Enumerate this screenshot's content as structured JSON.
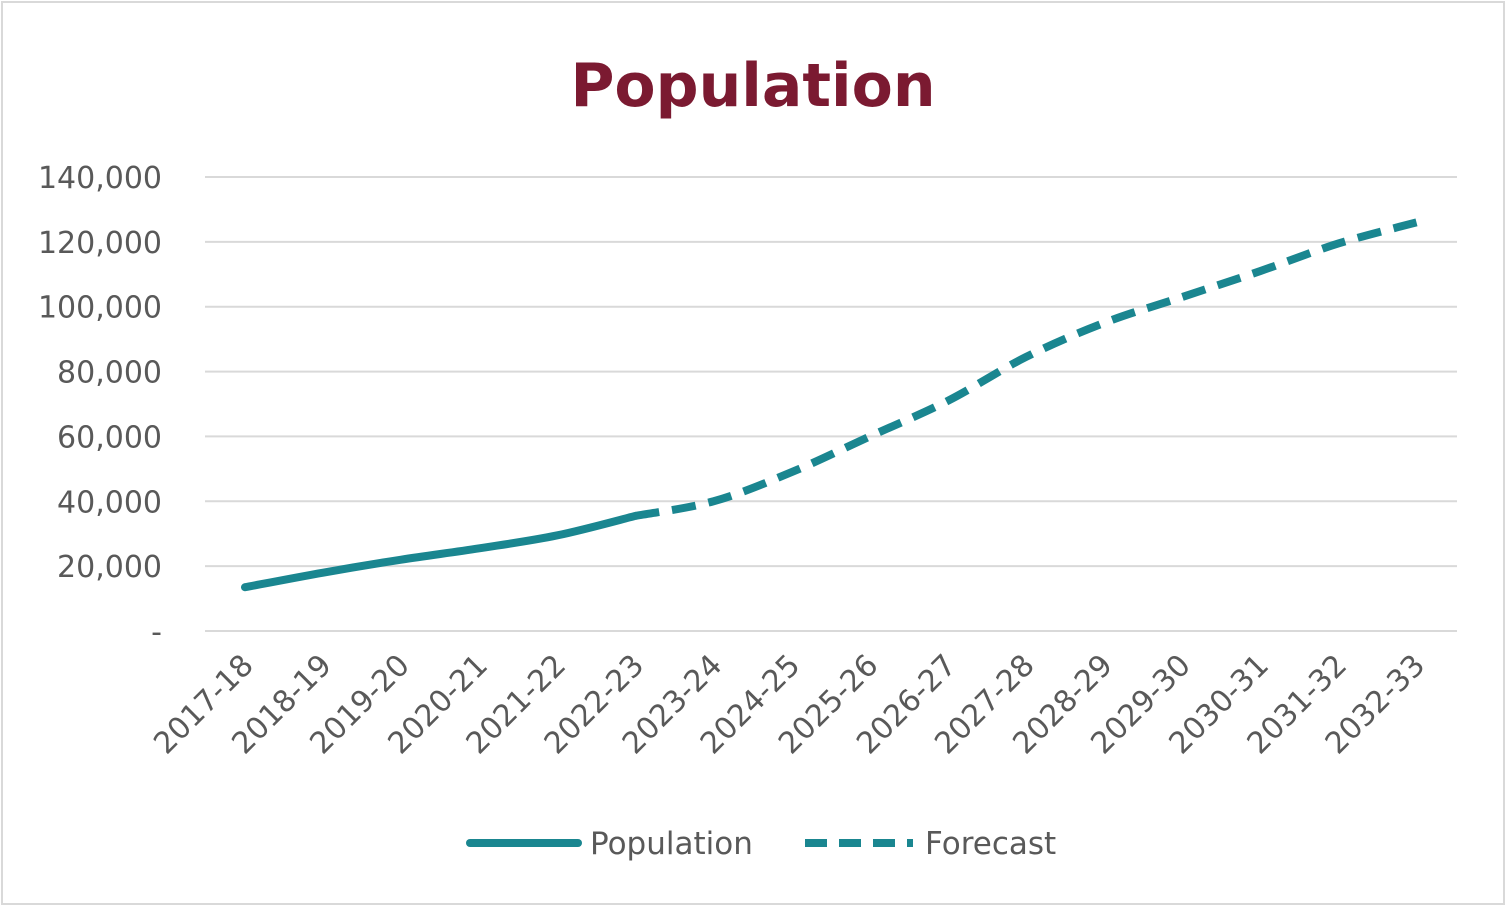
{
  "chart_data": {
    "type": "line",
    "title": "Population",
    "xlabel": "",
    "ylabel": "",
    "categories": [
      "2017-18",
      "2018-19",
      "2019-20",
      "2020-21",
      "2021-22",
      "2022-23",
      "2023-24",
      "2024-25",
      "2025-26",
      "2026-27",
      "2027-28",
      "2028-29",
      "2029-30",
      "2030-31",
      "2031-32",
      "2032-33"
    ],
    "ylim": [
      0,
      140000
    ],
    "yticks": [
      0,
      20000,
      40000,
      60000,
      80000,
      100000,
      120000,
      140000
    ],
    "ytick_labels": [
      "-",
      "20,000",
      "40,000",
      "60,000",
      "80,000",
      "100,000",
      "120,000",
      "140,000"
    ],
    "grid": true,
    "legend_position": "bottom",
    "series": [
      {
        "name": "Population",
        "style": "solid",
        "values": [
          13500,
          18000,
          22000,
          25500,
          29500,
          35500,
          null,
          null,
          null,
          null,
          null,
          null,
          null,
          null,
          null,
          null
        ]
      },
      {
        "name": "Forecast",
        "style": "dashed",
        "values": [
          null,
          null,
          null,
          null,
          null,
          35500,
          40000,
          49000,
          60000,
          71000,
          84500,
          95000,
          103000,
          111000,
          119500,
          126000
        ]
      }
    ]
  },
  "colors": {
    "title": "#7b1a31",
    "series": "#1a8690",
    "grid": "#d9d9d9",
    "tick_text": "#595959"
  }
}
